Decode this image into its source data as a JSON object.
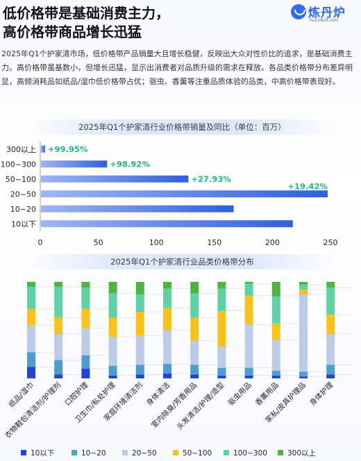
{
  "header": {
    "title_line1": "低价格带是基础消费主力，",
    "title_line2": "高价格带商品增长迅猛"
  },
  "logo": {
    "name": "炼丹炉",
    "url": "huo1818.com"
  },
  "intro": "2025年Q1个护家清市场，低价格带产品销量大且增长稳健，反映出大众对性价比的追求，是基础消费主力。高价格带虽基数小，但增长迅猛，显示出消费者对品质升级的需求在释放。各品类价格带分布差异明显，高频消耗品如纸品/湿巾低价格带占优；驱虫、香薰等注重品质体验的品类，中高价格带表现好。",
  "colors": {
    "bar_start": "#9fb6f2",
    "bar_end": "#2f5fe0",
    "growth_label": "#1fb98a",
    "band_colors": [
      "#2342d8",
      "#4a9fcf",
      "#bccbe6",
      "#f8c21a",
      "#5fd2a5",
      "#4db43f"
    ]
  },
  "chart_data": [
    {
      "type": "bar",
      "orientation": "horizontal",
      "title": "2025年Q1个护家清行业价格带销量及同比（单位：百万）",
      "categories": [
        "300以上",
        "100~300",
        "50~100",
        "20~50",
        "10~20",
        "10以下"
      ],
      "values": [
        3.5,
        57,
        127,
        247,
        166,
        217
      ],
      "growth_labels": [
        "+99.95%",
        "+98.92%",
        "+27.93%",
        "+19.42%",
        "",
        ""
      ],
      "xlim": [
        0,
        250
      ],
      "xticks": [
        "0",
        "50",
        "100",
        "150",
        "200",
        "250"
      ],
      "grid": false
    },
    {
      "type": "bar",
      "stacked": true,
      "percent": true,
      "title": "2025年Q1个护家清行业品类价格带分布",
      "categories": [
        "纸品/湿巾",
        "衣物鞋包清洁剂/护理剂",
        "口腔护理",
        "卫生巾/私处护理",
        "家庭环境清洁剂",
        "身体清洁",
        "室内除臭/芳香用品",
        "头发清洁/护理/造型",
        "驱虫用品",
        "香薰用品",
        "家私/皮具护理品",
        "身体护理"
      ],
      "series": [
        {
          "name": "10以下",
          "values": [
            12,
            4,
            10,
            3,
            4,
            5,
            4,
            3,
            3,
            3,
            2,
            4
          ]
        },
        {
          "name": "10~20",
          "values": [
            15,
            15,
            14,
            10,
            10,
            10,
            10,
            8,
            8,
            5,
            5,
            10
          ]
        },
        {
          "name": "20~50",
          "values": [
            28,
            27,
            28,
            30,
            30,
            35,
            25,
            22,
            45,
            32,
            80,
            32
          ]
        },
        {
          "name": "50~100",
          "values": [
            17,
            17,
            20,
            20,
            25,
            23,
            24,
            37,
            30,
            17,
            5,
            20
          ]
        },
        {
          "name": "100~300",
          "values": [
            23,
            32,
            22,
            25,
            18,
            20,
            25,
            23,
            12,
            28,
            5,
            28
          ]
        },
        {
          "name": "300以上",
          "values": [
            5,
            5,
            6,
            12,
            13,
            7,
            12,
            7,
            2,
            15,
            3,
            6
          ]
        }
      ],
      "ylim": [
        0,
        100
      ],
      "legend_position": "bottom"
    }
  ]
}
